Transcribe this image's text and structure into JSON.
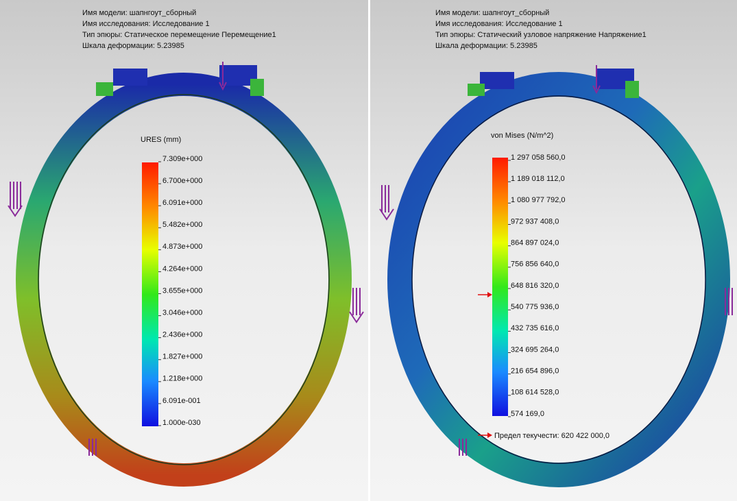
{
  "panels": [
    {
      "header": [
        "Имя модели: шапнгоут_сборный",
        "Имя  исследования: Исследование 1",
        "Тип эпюры: Статическое перемещение Перемещение1",
        "Шкала деформации: 5.23985"
      ],
      "legend_title": "URES (mm)",
      "legend_labels": [
        "7.309e+000",
        "6.700e+000",
        "6.091e+000",
        "5.482e+000",
        "4.873e+000",
        "4.264e+000",
        "3.655e+000",
        "3.046e+000",
        "2.436e+000",
        "1.827e+000",
        "1.218e+000",
        "6.091e-001",
        "1.000e-030"
      ]
    },
    {
      "header": [
        "Имя модели: шапнгоут_сборный",
        "Имя  исследования: Исследование 1",
        "Тип эпюры: Статический узловое напряжение Напряжение1",
        "Шкала деформации: 5.23985"
      ],
      "legend_title": "von Mises (N/m^2)",
      "legend_labels": [
        "1 297 058 560,0",
        "1 189 018 112,0",
        "1 080 977 792,0",
        "972 937 408,0",
        "864 897 024,0",
        "756 856 640,0",
        "648 816 320,0",
        "540 775 936,0",
        "432 735 616,0",
        "324 695 264,0",
        "216 654 896,0",
        "108 614 528,0",
        "574 169,0"
      ],
      "yield_label": "Предел текучести: 620 422 000,0"
    }
  ]
}
